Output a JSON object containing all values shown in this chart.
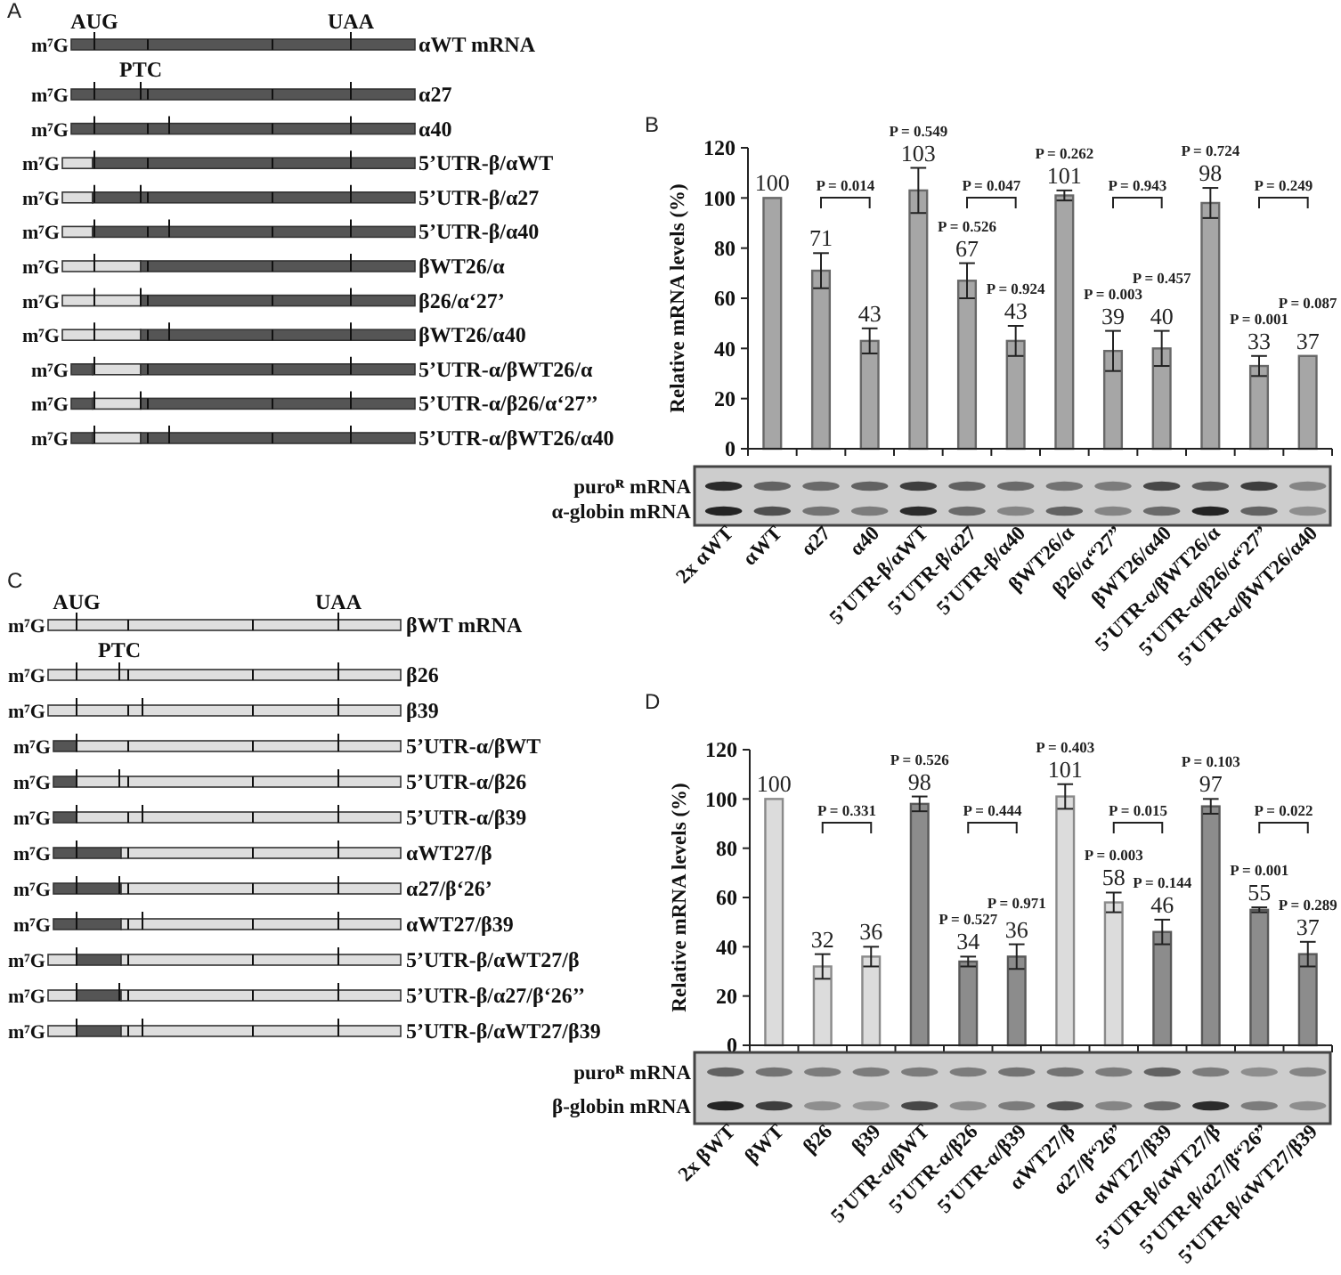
{
  "chart_data": [
    {
      "type": "other",
      "title": "A",
      "categories": [
        "αWT mRNA",
        "α27",
        "α40",
        "5’UTR-β/αWT",
        "5’UTR-β/α27",
        "5’UTR-β/α40",
        "βWT26/α",
        "β26/α‘27’",
        "βWT26/α40",
        "5’UTR-α/βWT26/α",
        "5’UTR-α/β26/α‘27’’",
        "5’UTR-α/βWT26/α40"
      ],
      "annotations": [
        "AUG",
        "UAA",
        "PTC",
        "m⁷G"
      ]
    },
    {
      "type": "bar",
      "title": "B",
      "ylabel": "Relative mRNA levels (%)",
      "categories": [
        "αWT",
        "α27",
        "α40",
        "5’UTR-β/αWT",
        "5’UTR-β/α27",
        "5’UTR-β/α40",
        "βWT26/α",
        "β26/α“27”",
        "βWT26/α40",
        "5’UTR-α/βWT26/α",
        "5’UTR-α/β26/α“27”",
        "5’UTR-α/βWT26/α40"
      ],
      "values": [
        100,
        71,
        43,
        103,
        67,
        43,
        101,
        39,
        40,
        98,
        33,
        37
      ],
      "errors": [
        null,
        7,
        5,
        9,
        7,
        6,
        2,
        8,
        7,
        6,
        4,
        null
      ],
      "color": "#a6a6a6",
      "ylim": [
        0,
        120
      ],
      "yticks": [
        0,
        20,
        40,
        60,
        80,
        100,
        120
      ],
      "data_labels": true,
      "annotations": [
        "2x αWT",
        "puroᴿ mRNA",
        "α-globin mRNA",
        "P = 0.014",
        "P = 0.047",
        "P = 0.943",
        "P = 0.249",
        "P = 0.549",
        "P = 0.526",
        "P = 0.924",
        "P = 0.262",
        "P = 0.003",
        "P = 0.457",
        "P = 0.724",
        "P = 0.001",
        "P = 0.087"
      ]
    },
    {
      "type": "other",
      "title": "C",
      "categories": [
        "βWT mRNA",
        "β26",
        "β39",
        "5’UTR-α/βWT",
        "5’UTR-α/β26",
        "5’UTR-α/β39",
        "αWT27/β",
        "α27/β‘26’",
        "αWT27/β39",
        "5’UTR-β/αWT27/β",
        "5’UTR-β/α27/β‘26’’",
        "5’UTR-β/αWT27/β39"
      ],
      "annotations": [
        "AUG",
        "UAA",
        "PTC",
        "m⁷G"
      ]
    },
    {
      "type": "bar",
      "title": "D",
      "ylabel": "Relative mRNA levels (%)",
      "categories": [
        "βWT",
        "β26",
        "β39",
        "5’UTR-α/βWT",
        "5’UTR-α/β26",
        "5’UTR-α/β39",
        "αWT27/β",
        "α27/β“26”",
        "αWT27/β39",
        "5’UTR-β/αWT27/β",
        "5’UTR-β/α27/β“26”",
        "5’UTR-β/αWT27/β39"
      ],
      "values": [
        100,
        32,
        36,
        98,
        34,
        36,
        101,
        58,
        46,
        97,
        55,
        37
      ],
      "errors": [
        null,
        5,
        4,
        3,
        2,
        5,
        5,
        4,
        5,
        3,
        1,
        5
      ],
      "colors": [
        "#dcdcdc",
        "#dcdcdc",
        "#dcdcdc",
        "#8c8c8c",
        "#8c8c8c",
        "#8c8c8c",
        "#dcdcdc",
        "#dcdcdc",
        "#8c8c8c",
        "#8c8c8c",
        "#8c8c8c",
        "#8c8c8c"
      ],
      "ylim": [
        0,
        120
      ],
      "yticks": [
        0,
        20,
        40,
        60,
        80,
        100,
        120
      ],
      "data_labels": true,
      "annotations": [
        "2x βWT",
        "puroᴿ mRNA",
        "β-globin mRNA",
        "P = 0.331",
        "P = 0.444",
        "P = 0.015",
        "P = 0.022",
        "P = 0.526",
        "P = 0.527",
        "P = 0.971",
        "P = 0.403",
        "P = 0.003",
        "P = 0.144",
        "P = 0.103",
        "P = 0.001",
        "P = 0.289"
      ]
    }
  ]
}
